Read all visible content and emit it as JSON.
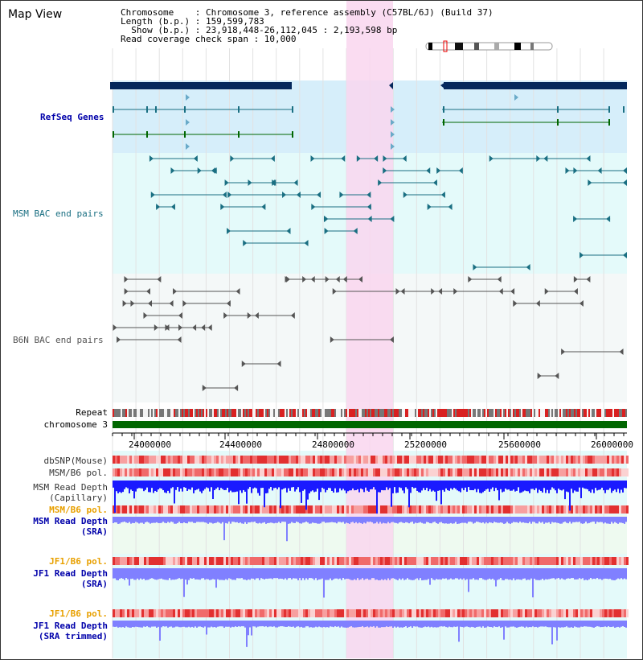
{
  "header": {
    "title": "Map View",
    "info_lines": [
      "Chromosome    : Chromosome 3, reference assembly (C57BL/6J) (Build 37)",
      "Length (b.p.) : 159,599,783",
      "  Show (b.p.) : 23,918,448-26,112,045 : 2,193,598 bp",
      "Read coverage check span : 10,000"
    ]
  },
  "axis": {
    "ticks": [
      "24000000",
      "24400000",
      "24800000",
      "25200000",
      "25600000",
      "26000000"
    ]
  },
  "tracks": {
    "refseq": "RefSeq Genes",
    "msm_bac": "MSM BAC end pairs",
    "b6n_bac": "B6N BAC end pairs",
    "repeat": "Repeat",
    "chromosome": "chromosome 3",
    "dbsnp": "dbSNP(Mouse)",
    "msm_b6_pol": "MSM/B6 pol.",
    "msm_read_cap_1": "MSM Read Depth",
    "msm_read_cap_2": "(Capillary)",
    "msm_b6_pol_2": "MSM/B6 pol.",
    "msm_read_sra_1": "MSM Read Depth",
    "msm_read_sra_2": "(SRA)",
    "jf1_b6_pol": "JF1/B6 pol.",
    "jf1_read_sra_1": "JF1 Read Depth",
    "jf1_read_sra_2": "(SRA)",
    "jf1_b6_pol_2": "JF1/B6 pol.",
    "jf1_read_trim_1": "JF1 Read Depth",
    "jf1_read_trim_2": "(SRA trimmed)"
  },
  "colors": {
    "highlight": "#f9d6ef",
    "refseq_bg": "#d6eefa",
    "lower_bg": "#e4fafa",
    "msm_line": "#1a6f82",
    "b6n_line": "#555555",
    "gene_bar": "#05285c",
    "chromosome": "#006600",
    "depth_dark": "#1a1aff",
    "depth_light": "#8080ff",
    "orange_label": "#e8a000",
    "blue_label": "#0000aa"
  }
}
